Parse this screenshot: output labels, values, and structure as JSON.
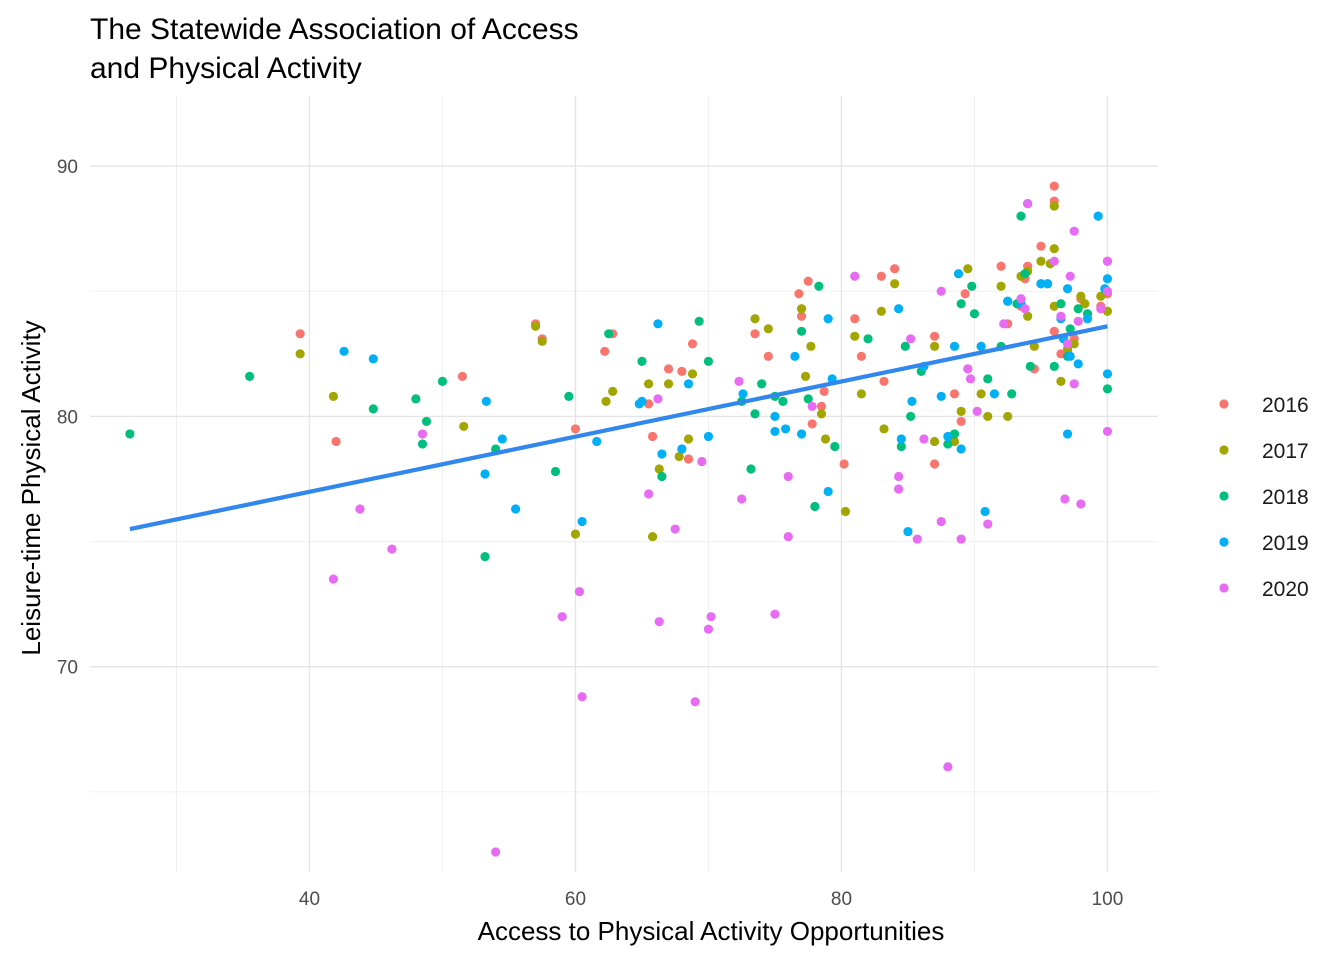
{
  "chart_data": {
    "type": "scatter",
    "title": "The Statewide Association of Access\nand Physical Activity",
    "xlabel": "Access to Physical Activity Opportunities",
    "ylabel": "Leisure-time Physical Activity",
    "xlim": [
      23.5,
      103.8
    ],
    "ylim": [
      61.8,
      92.8
    ],
    "x_ticks": [
      40,
      60,
      80,
      100
    ],
    "y_ticks": [
      70,
      80,
      90
    ],
    "grid": true,
    "legend_position": "right",
    "trend_line": {
      "x": [
        26.5,
        100
      ],
      "y": [
        75.5,
        83.6
      ],
      "color": "#3187EE"
    },
    "series": [
      {
        "name": "2016",
        "color": "#F8766D",
        "points": [
          [
            39.3,
            83.3
          ],
          [
            42.0,
            79.0
          ],
          [
            51.5,
            81.6
          ],
          [
            57.0,
            83.7
          ],
          [
            57.5,
            83.1
          ],
          [
            60.0,
            79.5
          ],
          [
            62.2,
            82.6
          ],
          [
            62.8,
            83.3
          ],
          [
            65.5,
            80.5
          ],
          [
            65.8,
            79.2
          ],
          [
            67.0,
            81.9
          ],
          [
            68.0,
            81.8
          ],
          [
            68.5,
            78.3
          ],
          [
            68.8,
            82.9
          ],
          [
            73.5,
            83.3
          ],
          [
            74.5,
            82.4
          ],
          [
            76.8,
            84.9
          ],
          [
            77.0,
            84.0
          ],
          [
            77.5,
            85.4
          ],
          [
            77.8,
            79.7
          ],
          [
            78.5,
            80.4
          ],
          [
            78.7,
            81.0
          ],
          [
            80.2,
            78.1
          ],
          [
            81.0,
            83.9
          ],
          [
            81.5,
            82.4
          ],
          [
            83.0,
            85.6
          ],
          [
            83.2,
            81.4
          ],
          [
            84.0,
            85.9
          ],
          [
            87.0,
            83.2
          ],
          [
            87.0,
            78.1
          ],
          [
            88.5,
            80.9
          ],
          [
            89.0,
            79.8
          ],
          [
            89.3,
            84.9
          ],
          [
            89.5,
            81.9
          ],
          [
            90.5,
            82.8
          ],
          [
            92.0,
            86.0
          ],
          [
            92.5,
            83.7
          ],
          [
            93.5,
            84.4
          ],
          [
            93.8,
            85.5
          ],
          [
            94.0,
            86.0
          ],
          [
            94.5,
            81.9
          ],
          [
            95.0,
            86.8
          ],
          [
            95.5,
            85.3
          ],
          [
            96.0,
            89.2
          ],
          [
            96.0,
            88.6
          ],
          [
            96.0,
            83.4
          ],
          [
            96.5,
            82.5
          ],
          [
            97.0,
            82.6
          ],
          [
            97.5,
            83.1
          ],
          [
            98.0,
            84.7
          ],
          [
            99.5,
            84.4
          ],
          [
            100.0,
            86.2
          ],
          [
            100.0,
            84.9
          ]
        ]
      },
      {
        "name": "2017",
        "color": "#A3A500",
        "points": [
          [
            39.3,
            82.5
          ],
          [
            41.8,
            80.8
          ],
          [
            51.6,
            79.6
          ],
          [
            57.0,
            83.6
          ],
          [
            57.5,
            83.0
          ],
          [
            60.0,
            75.3
          ],
          [
            62.3,
            80.6
          ],
          [
            62.8,
            81.0
          ],
          [
            65.5,
            81.3
          ],
          [
            65.8,
            75.2
          ],
          [
            66.3,
            77.9
          ],
          [
            67.0,
            81.3
          ],
          [
            67.8,
            78.4
          ],
          [
            68.5,
            79.1
          ],
          [
            68.8,
            81.7
          ],
          [
            73.5,
            83.9
          ],
          [
            74.5,
            83.5
          ],
          [
            77.0,
            84.3
          ],
          [
            77.3,
            81.6
          ],
          [
            77.7,
            82.8
          ],
          [
            78.5,
            80.1
          ],
          [
            78.8,
            79.1
          ],
          [
            80.3,
            76.2
          ],
          [
            81.0,
            83.2
          ],
          [
            81.5,
            80.9
          ],
          [
            83.0,
            84.2
          ],
          [
            83.2,
            79.5
          ],
          [
            84.0,
            85.3
          ],
          [
            87.0,
            82.8
          ],
          [
            87.0,
            79.0
          ],
          [
            88.5,
            79.0
          ],
          [
            89.0,
            80.2
          ],
          [
            89.5,
            85.9
          ],
          [
            90.5,
            80.9
          ],
          [
            91.0,
            80.0
          ],
          [
            92.0,
            85.2
          ],
          [
            92.5,
            80.0
          ],
          [
            93.5,
            85.6
          ],
          [
            94.0,
            84.0
          ],
          [
            94.0,
            85.8
          ],
          [
            94.5,
            82.8
          ],
          [
            95.0,
            86.2
          ],
          [
            95.7,
            86.1
          ],
          [
            96.0,
            88.4
          ],
          [
            96.0,
            86.7
          ],
          [
            96.0,
            84.4
          ],
          [
            96.5,
            81.4
          ],
          [
            97.0,
            82.7
          ],
          [
            97.5,
            82.9
          ],
          [
            98.0,
            84.8
          ],
          [
            98.3,
            84.5
          ],
          [
            99.5,
            84.8
          ],
          [
            100.0,
            84.2
          ]
        ]
      },
      {
        "name": "2018",
        "color": "#00BF7D",
        "points": [
          [
            26.5,
            79.3
          ],
          [
            35.5,
            81.6
          ],
          [
            44.8,
            80.3
          ],
          [
            48.0,
            80.7
          ],
          [
            48.5,
            78.9
          ],
          [
            48.8,
            79.8
          ],
          [
            50.0,
            81.4
          ],
          [
            53.2,
            74.4
          ],
          [
            54.0,
            78.7
          ],
          [
            58.5,
            77.8
          ],
          [
            59.5,
            80.8
          ],
          [
            62.5,
            83.3
          ],
          [
            65.0,
            82.2
          ],
          [
            66.5,
            77.6
          ],
          [
            69.3,
            83.8
          ],
          [
            70.0,
            82.2
          ],
          [
            72.5,
            80.6
          ],
          [
            73.2,
            77.9
          ],
          [
            73.5,
            80.1
          ],
          [
            74.0,
            81.3
          ],
          [
            75.0,
            80.8
          ],
          [
            75.6,
            80.6
          ],
          [
            77.0,
            83.4
          ],
          [
            77.5,
            80.7
          ],
          [
            78.0,
            76.4
          ],
          [
            78.3,
            85.2
          ],
          [
            79.5,
            78.8
          ],
          [
            82.0,
            83.1
          ],
          [
            84.5,
            78.8
          ],
          [
            84.8,
            82.8
          ],
          [
            85.2,
            80.0
          ],
          [
            86.0,
            81.8
          ],
          [
            88.0,
            78.9
          ],
          [
            88.5,
            79.3
          ],
          [
            89.0,
            84.5
          ],
          [
            89.8,
            85.2
          ],
          [
            90.0,
            84.1
          ],
          [
            91.0,
            81.5
          ],
          [
            92.0,
            82.8
          ],
          [
            92.5,
            84.6
          ],
          [
            92.8,
            80.9
          ],
          [
            93.2,
            84.5
          ],
          [
            93.5,
            88.0
          ],
          [
            93.8,
            85.7
          ],
          [
            94.2,
            82.0
          ],
          [
            95.0,
            85.3
          ],
          [
            96.0,
            82.0
          ],
          [
            96.5,
            84.5
          ],
          [
            97.0,
            82.4
          ],
          [
            97.2,
            83.5
          ],
          [
            97.8,
            84.3
          ],
          [
            98.5,
            84.1
          ],
          [
            100.0,
            81.1
          ]
        ]
      },
      {
        "name": "2019",
        "color": "#00B0F6",
        "points": [
          [
            42.6,
            82.6
          ],
          [
            44.8,
            82.3
          ],
          [
            53.2,
            77.7
          ],
          [
            53.3,
            80.6
          ],
          [
            54.5,
            79.1
          ],
          [
            55.5,
            76.3
          ],
          [
            60.5,
            75.8
          ],
          [
            61.6,
            79.0
          ],
          [
            64.8,
            80.5
          ],
          [
            65.0,
            80.6
          ],
          [
            66.2,
            83.7
          ],
          [
            66.5,
            78.5
          ],
          [
            68.0,
            78.7
          ],
          [
            68.5,
            81.3
          ],
          [
            70.0,
            79.2
          ],
          [
            72.6,
            80.9
          ],
          [
            75.0,
            79.4
          ],
          [
            75.0,
            80.0
          ],
          [
            75.8,
            79.5
          ],
          [
            76.5,
            82.4
          ],
          [
            77.0,
            79.3
          ],
          [
            79.0,
            77.0
          ],
          [
            79.0,
            83.9
          ],
          [
            79.3,
            81.5
          ],
          [
            84.3,
            84.3
          ],
          [
            84.5,
            79.1
          ],
          [
            85.0,
            75.4
          ],
          [
            85.3,
            80.6
          ],
          [
            86.2,
            82.0
          ],
          [
            87.5,
            80.8
          ],
          [
            88.0,
            79.2
          ],
          [
            88.5,
            82.8
          ],
          [
            88.8,
            85.7
          ],
          [
            89.0,
            78.7
          ],
          [
            90.5,
            82.8
          ],
          [
            90.8,
            76.2
          ],
          [
            91.5,
            80.9
          ],
          [
            92.5,
            84.6
          ],
          [
            93.5,
            84.5
          ],
          [
            94.0,
            88.5
          ],
          [
            95.0,
            85.3
          ],
          [
            95.5,
            85.3
          ],
          [
            96.5,
            83.9
          ],
          [
            96.7,
            83.1
          ],
          [
            97.0,
            79.3
          ],
          [
            97.0,
            85.1
          ],
          [
            97.2,
            82.4
          ],
          [
            97.8,
            82.1
          ],
          [
            98.5,
            83.9
          ],
          [
            99.3,
            88.0
          ],
          [
            99.8,
            85.1
          ],
          [
            100.0,
            85.5
          ],
          [
            100.0,
            81.7
          ]
        ]
      },
      {
        "name": "2020",
        "color": "#E76BF3",
        "points": [
          [
            41.8,
            73.5
          ],
          [
            43.8,
            76.3
          ],
          [
            46.2,
            74.7
          ],
          [
            48.5,
            79.3
          ],
          [
            54.0,
            62.6
          ],
          [
            59.0,
            72.0
          ],
          [
            60.3,
            73.0
          ],
          [
            60.5,
            68.8
          ],
          [
            65.5,
            76.9
          ],
          [
            66.2,
            80.7
          ],
          [
            66.3,
            71.8
          ],
          [
            67.5,
            75.5
          ],
          [
            69.0,
            68.6
          ],
          [
            69.5,
            78.2
          ],
          [
            70.0,
            71.5
          ],
          [
            70.2,
            72.0
          ],
          [
            72.3,
            81.4
          ],
          [
            72.5,
            76.7
          ],
          [
            75.0,
            72.1
          ],
          [
            76.0,
            75.2
          ],
          [
            76.0,
            77.6
          ],
          [
            77.8,
            80.4
          ],
          [
            81.0,
            85.6
          ],
          [
            84.3,
            77.1
          ],
          [
            84.3,
            77.6
          ],
          [
            85.2,
            83.1
          ],
          [
            85.7,
            75.1
          ],
          [
            86.2,
            79.1
          ],
          [
            87.5,
            75.8
          ],
          [
            87.5,
            85.0
          ],
          [
            88.0,
            66.0
          ],
          [
            89.0,
            75.1
          ],
          [
            89.5,
            81.9
          ],
          [
            89.7,
            81.5
          ],
          [
            90.2,
            80.2
          ],
          [
            91.0,
            75.7
          ],
          [
            92.2,
            83.7
          ],
          [
            93.5,
            84.7
          ],
          [
            93.8,
            84.3
          ],
          [
            94.0,
            88.5
          ],
          [
            96.0,
            86.2
          ],
          [
            96.5,
            84.0
          ],
          [
            96.8,
            76.7
          ],
          [
            97.0,
            82.9
          ],
          [
            97.2,
            85.6
          ],
          [
            97.5,
            81.3
          ],
          [
            97.5,
            87.4
          ],
          [
            97.8,
            83.8
          ],
          [
            98.0,
            76.5
          ],
          [
            99.5,
            84.3
          ],
          [
            100.0,
            86.2
          ],
          [
            100.0,
            79.4
          ],
          [
            100.0,
            85.0
          ]
        ]
      }
    ]
  }
}
